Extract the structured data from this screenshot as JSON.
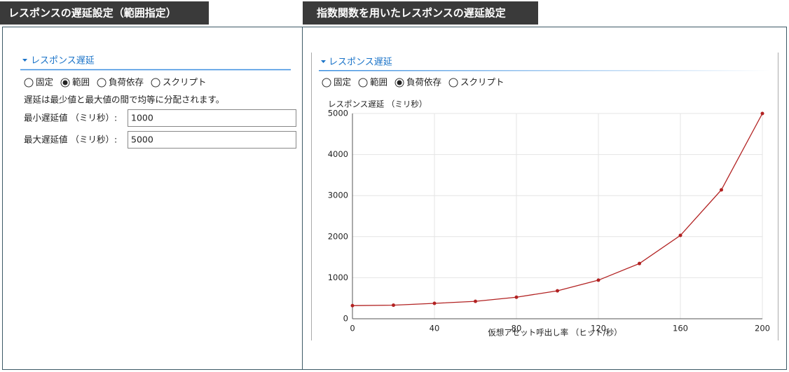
{
  "left": {
    "header": "レスポンスの遅延設定（範囲指定）",
    "section": "レスポンス遅延",
    "options": [
      "固定",
      "範囲",
      "負荷依存",
      "スクリプト"
    ],
    "selected": 1,
    "description": "遅延は最少値と最大値の間で均等に分配されます。",
    "fields": [
      {
        "label": "最小遅延値 （ミリ秒）:",
        "value": "1000"
      },
      {
        "label": "最大遅延値 （ミリ秒）:",
        "value": "5000"
      }
    ]
  },
  "right": {
    "header": "指数関数を用いたレスポンスの遅延設定",
    "section": "レスポンス遅延",
    "options": [
      "固定",
      "範囲",
      "負荷依存",
      "スクリプト"
    ],
    "selected": 2
  },
  "chart_data": {
    "type": "line",
    "y_label": "レスポンス遅延 （ミリ秒）",
    "x_label": "仮想アセット呼出し率 （ヒット/秒）",
    "x": [
      0,
      20,
      40,
      60,
      80,
      100,
      120,
      140,
      160,
      180,
      200
    ],
    "series": [
      {
        "name": "レスポンス遅延",
        "color": "#b22222",
        "values": [
          320,
          330,
          375,
          425,
          525,
          680,
          940,
          1345,
          2030,
          3140,
          5000
        ]
      }
    ],
    "xlim": [
      0,
      200
    ],
    "xticks": [
      0,
      40,
      80,
      120,
      160,
      200
    ],
    "ylim": [
      0,
      5000
    ],
    "yticks": [
      0,
      1000,
      2000,
      3000,
      4000,
      5000
    ],
    "grid": true
  }
}
